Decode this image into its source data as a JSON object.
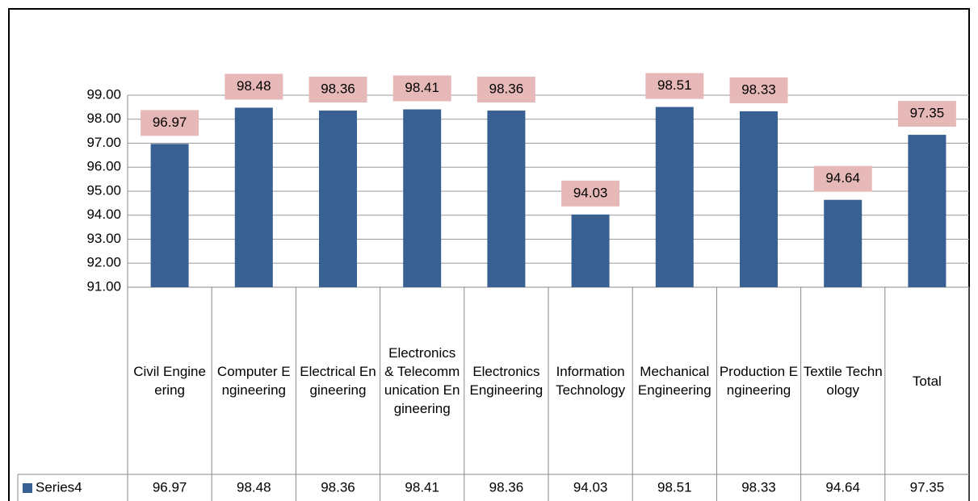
{
  "chart_data": {
    "type": "bar",
    "categories": [
      "Civil Engineering",
      "Computer Engineering",
      "Electrical Engineering",
      "Electronics & Telecommunication Engineering",
      "Electronics Engineering",
      "Information Technology",
      "Mechanical Engineering",
      "Production Engineering",
      "Textile Technology",
      "Total"
    ],
    "series": [
      {
        "name": "Series4",
        "color": "#386092",
        "values": [
          96.97,
          98.48,
          98.36,
          98.41,
          98.36,
          94.03,
          98.51,
          98.33,
          94.64,
          97.35
        ]
      }
    ],
    "ylim": [
      91,
      99
    ],
    "yticks": [
      {
        "value": 91,
        "label": "91.00"
      },
      {
        "value": 92,
        "label": "92.00"
      },
      {
        "value": 93,
        "label": "93.00"
      },
      {
        "value": 94,
        "label": "94.00"
      },
      {
        "value": 95,
        "label": "95.00"
      },
      {
        "value": 96,
        "label": "96.00"
      },
      {
        "value": 97,
        "label": "97.00"
      },
      {
        "value": 98,
        "label": "98.00"
      },
      {
        "value": 99,
        "label": "99.00"
      }
    ],
    "grid": true,
    "data_labels": true,
    "data_table": true
  }
}
